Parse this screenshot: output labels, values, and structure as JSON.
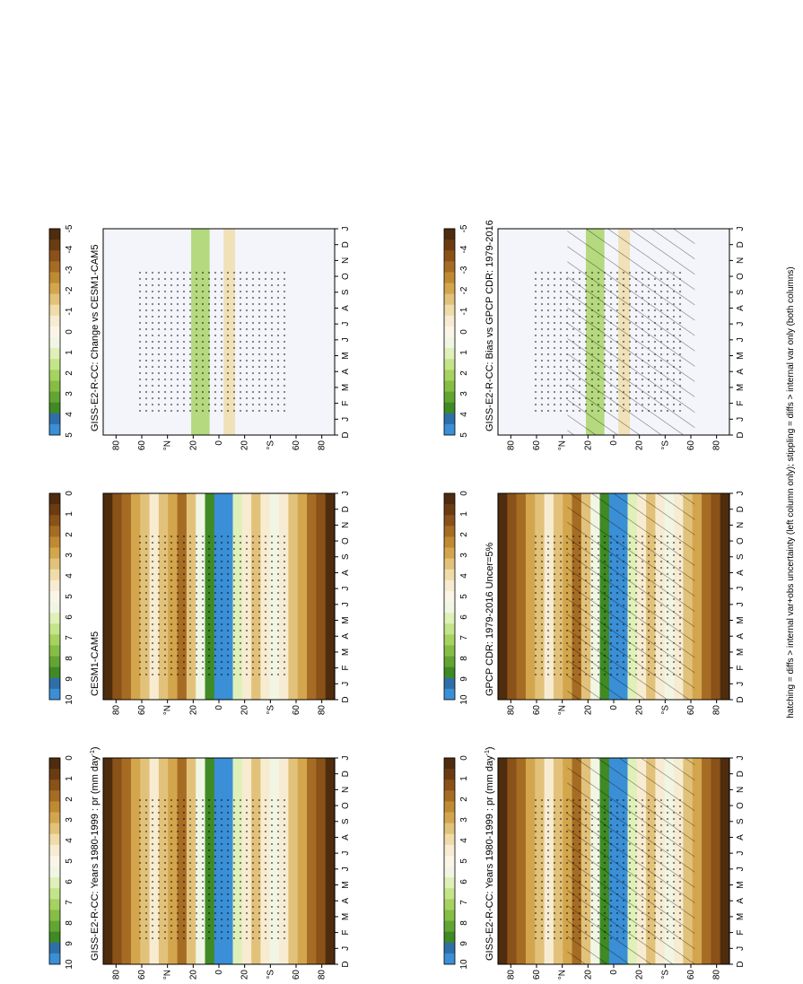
{
  "footnote": "hatching = diffs > internal var+obs uncertainty (left column only); stippling = diffs > internal var only (both columns)",
  "month_ticks": [
    "D",
    "J",
    "F",
    "M",
    "A",
    "M",
    "J",
    "J",
    "A",
    "S",
    "O",
    "N",
    "D",
    "J"
  ],
  "lat_ticks": [
    "80",
    "60",
    "°N",
    "20",
    "0",
    "20",
    "°S",
    "60",
    "80"
  ],
  "colors": {
    "brown_scale": [
      "#4e2c0d",
      "#6b3c11",
      "#8a5219",
      "#a66c24",
      "#bf8a32",
      "#d3a64d",
      "#e2c27a",
      "#efdca8",
      "#f7ecd2",
      "#fbf5e8",
      "#f1f6e4",
      "#dff0b8",
      "#c4e48a",
      "#a5d260",
      "#86bd45",
      "#63a532",
      "#3f8a25",
      "#2f6fa8",
      "#3a8fd6"
    ],
    "diff_bg": "#f3f5fa"
  },
  "chart_data": [
    {
      "type": "heatmap",
      "title": "GISS-E2-R-CC: Years 1980-1999 : pr (mm day",
      "title_sup": "-1",
      "title_suffix": ")",
      "pattern": "hatch+stipple",
      "colorbar": {
        "ticks": [
          "10",
          "9",
          "8",
          "7",
          "6",
          "5",
          "4",
          "3",
          "2",
          "1",
          "0"
        ],
        "range": [
          0,
          10
        ]
      }
    },
    {
      "type": "heatmap",
      "title": "GISS-E2-R-CC: Years 1980-1999 : pr (mm day",
      "title_sup": "-1",
      "title_suffix": ")",
      "pattern": "stipple",
      "colorbar": {
        "ticks": [
          "10",
          "9",
          "8",
          "7",
          "6",
          "5",
          "4",
          "3",
          "2",
          "1",
          "0"
        ],
        "range": [
          0,
          10
        ]
      }
    },
    {
      "type": "heatmap",
      "title": "GPCP CDR: 1979-2016 Uncer=5%",
      "pattern": "hatch+stipple",
      "colorbar": {
        "ticks": [
          "10",
          "9",
          "8",
          "7",
          "6",
          "5",
          "4",
          "3",
          "2",
          "1",
          "0"
        ],
        "range": [
          0,
          10
        ]
      }
    },
    {
      "type": "heatmap",
      "title": "CESM1-CAM5",
      "pattern": "stipple",
      "colorbar": {
        "ticks": [
          "10",
          "9",
          "8",
          "7",
          "6",
          "5",
          "4",
          "3",
          "2",
          "1",
          "0"
        ],
        "range": [
          0,
          10
        ]
      }
    },
    {
      "type": "heatmap",
      "title": "GISS-E2-R-CC: Bias vs GPCP CDR: 1979-2016",
      "pattern": "hatch+stipple",
      "colorbar": {
        "ticks": [
          "5",
          "4",
          "3",
          "2",
          "1",
          "0",
          "-1",
          "-2",
          "-3",
          "-4",
          "-5"
        ],
        "range": [
          -5,
          5
        ]
      }
    },
    {
      "type": "heatmap",
      "title": "GISS-E2-R-CC: Change vs CESM1-CAM5",
      "pattern": "stipple",
      "colorbar": {
        "ticks": [
          "5",
          "4",
          "3",
          "2",
          "1",
          "0",
          "-1",
          "-2",
          "-3",
          "-4",
          "-5"
        ],
        "range": [
          -5,
          5
        ]
      }
    }
  ]
}
